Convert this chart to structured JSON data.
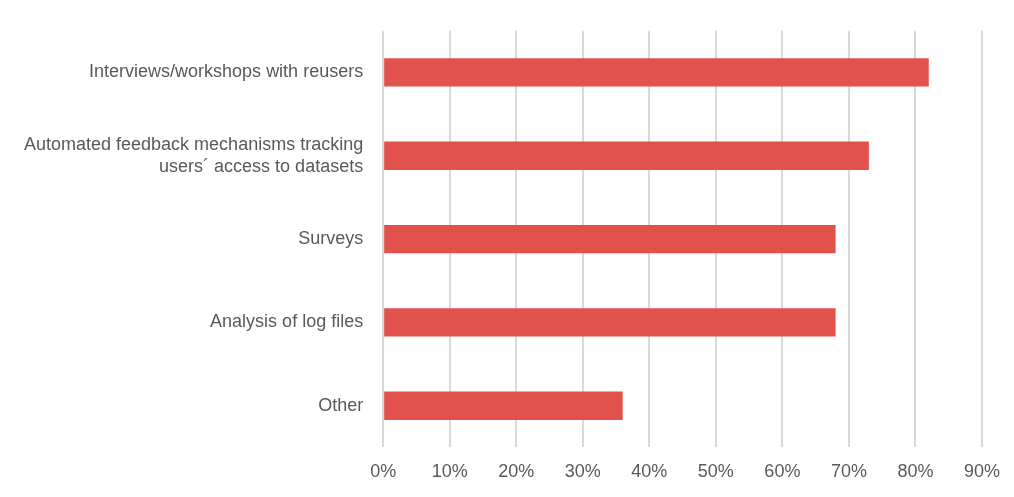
{
  "chart_data": {
    "type": "bar",
    "orientation": "horizontal",
    "categories": [
      "Interviews/workshops with reusers",
      "Automated feedback mechanisms tracking users´ access to datasets",
      "Surveys",
      "Analysis of log files",
      "Other"
    ],
    "values": [
      82,
      73,
      68,
      68,
      36
    ],
    "color": "#e0524b",
    "xlim": [
      0,
      90
    ],
    "xticks": [
      {
        "value": 0,
        "label": "0%"
      },
      {
        "value": 10,
        "label": "10%"
      },
      {
        "value": 20,
        "label": "20%"
      },
      {
        "value": 30,
        "label": "30%"
      },
      {
        "value": 40,
        "label": "40%"
      },
      {
        "value": 50,
        "label": "50%"
      },
      {
        "value": 60,
        "label": "60%"
      },
      {
        "value": 70,
        "label": "70%"
      },
      {
        "value": 80,
        "label": "80%"
      },
      {
        "value": 90,
        "label": "90%"
      }
    ],
    "grid": "x",
    "legend": false
  }
}
